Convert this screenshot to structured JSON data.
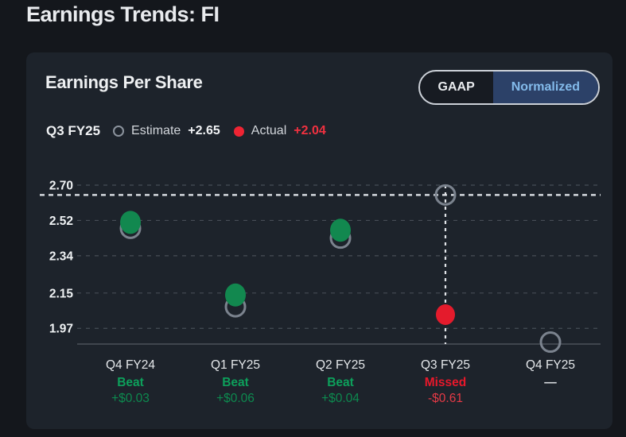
{
  "page": {
    "title": "Earnings Trends: FI"
  },
  "card": {
    "title": "Earnings Per Share",
    "toggle": {
      "gaap": "GAAP",
      "normalized": "Normalized",
      "selected": "Normalized"
    },
    "legend": {
      "quarter": "Q3 FY25",
      "estimate_label": "Estimate",
      "estimate_value": "+2.65",
      "actual_label": "Actual",
      "actual_value": "+2.04"
    }
  },
  "colors": {
    "page_bg": "#14171c",
    "card_bg": "#1d232b",
    "actual_beat_green": "#12884f",
    "actual_miss_red": "#e41b2c",
    "estimate_ring_gray": "#7b838e",
    "status_beat": "#0da05b",
    "amount_beat": "#0d8a4f",
    "status_missed": "#e8182b",
    "amount_missed": "#e63a46",
    "toggle_selected_bg": "#2c4168",
    "toggle_selected_text": "#83baea"
  },
  "chart_data": {
    "type": "scatter",
    "title": "Earnings Per Share",
    "categories": [
      "Q4 FY24",
      "Q1 FY25",
      "Q2 FY25",
      "Q3 FY25",
      "Q4 FY25"
    ],
    "y_tick_labels": [
      "2.70",
      "2.52",
      "2.34",
      "2.15",
      "1.97"
    ],
    "y_tick_values": [
      2.7,
      2.52,
      2.34,
      2.15,
      1.97
    ],
    "ylim": [
      1.89,
      2.7
    ],
    "estimate_reference_line": 2.65,
    "selected_quarter": "Q3 FY25",
    "grid": true,
    "legend_position": "top-left",
    "series": [
      {
        "name": "Estimate",
        "values": [
          2.48,
          2.08,
          2.43,
          2.65,
          1.9
        ]
      },
      {
        "name": "Actual",
        "values": [
          2.51,
          2.14,
          2.47,
          2.04,
          null
        ]
      }
    ],
    "points": [
      {
        "quarter": "Q4 FY24",
        "estimate": 2.48,
        "actual": 2.51,
        "status": "Beat",
        "surprise": "+$0.03"
      },
      {
        "quarter": "Q1 FY25",
        "estimate": 2.08,
        "actual": 2.14,
        "status": "Beat",
        "surprise": "+$0.06"
      },
      {
        "quarter": "Q2 FY25",
        "estimate": 2.43,
        "actual": 2.47,
        "status": "Beat",
        "surprise": "+$0.04"
      },
      {
        "quarter": "Q3 FY25",
        "estimate": 2.65,
        "actual": 2.04,
        "status": "Missed",
        "surprise": "-$0.61"
      },
      {
        "quarter": "Q4 FY25",
        "estimate": 1.9,
        "actual": null,
        "status": "—",
        "surprise": ""
      }
    ]
  }
}
